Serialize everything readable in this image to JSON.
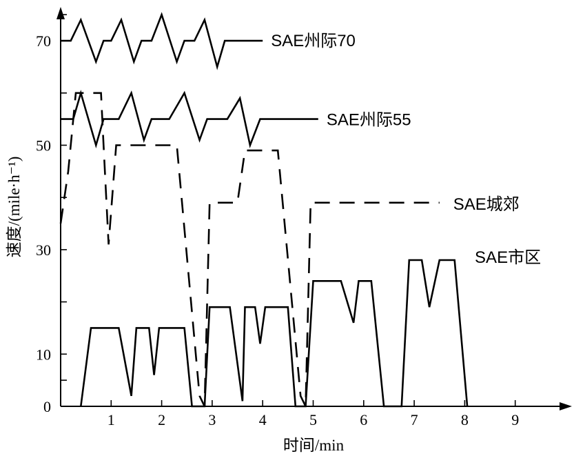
{
  "chart_data": {
    "type": "line",
    "title": "",
    "xlabel": "时间/min",
    "ylabel": "速度/(mile·h⁻¹)",
    "xlim": [
      0,
      10
    ],
    "ylim": [
      0,
      80
    ],
    "x_ticks": [
      1,
      2,
      3,
      4,
      5,
      6,
      7,
      8,
      9
    ],
    "y_tick_labels": [
      0,
      10,
      30,
      50,
      70
    ],
    "y_minor_ticks": [
      5,
      20,
      40,
      60,
      75
    ],
    "grid": false,
    "series": [
      {
        "name": "SAE州际70",
        "dash": "solid",
        "points": [
          [
            0.0,
            70
          ],
          [
            0.2,
            70
          ],
          [
            0.4,
            74
          ],
          [
            0.7,
            66
          ],
          [
            0.85,
            70
          ],
          [
            1.0,
            70
          ],
          [
            1.2,
            74
          ],
          [
            1.45,
            66
          ],
          [
            1.6,
            70
          ],
          [
            1.8,
            70
          ],
          [
            2.0,
            75
          ],
          [
            2.3,
            66
          ],
          [
            2.45,
            70
          ],
          [
            2.65,
            70
          ],
          [
            2.85,
            74
          ],
          [
            3.1,
            65
          ],
          [
            3.25,
            70
          ],
          [
            4.0,
            70
          ]
        ]
      },
      {
        "name": "SAE州际55",
        "dash": "solid",
        "points": [
          [
            0.0,
            55
          ],
          [
            0.25,
            55
          ],
          [
            0.4,
            60
          ],
          [
            0.7,
            50
          ],
          [
            0.85,
            55
          ],
          [
            1.15,
            55
          ],
          [
            1.4,
            60
          ],
          [
            1.65,
            51
          ],
          [
            1.8,
            55
          ],
          [
            2.15,
            55
          ],
          [
            2.45,
            60
          ],
          [
            2.75,
            51
          ],
          [
            2.9,
            55
          ],
          [
            3.3,
            55
          ],
          [
            3.55,
            59
          ],
          [
            3.75,
            50
          ],
          [
            3.95,
            55
          ],
          [
            5.1,
            55
          ]
        ]
      },
      {
        "name": "SAE城郊",
        "dash": "dashed",
        "points": [
          [
            0.0,
            35
          ],
          [
            0.15,
            45
          ],
          [
            0.3,
            60
          ],
          [
            0.8,
            60
          ],
          [
            0.85,
            50
          ],
          [
            0.95,
            31
          ],
          [
            1.1,
            50
          ],
          [
            2.3,
            50
          ],
          [
            2.75,
            2
          ],
          [
            2.85,
            0
          ],
          [
            2.95,
            39
          ],
          [
            3.5,
            39
          ],
          [
            3.65,
            49
          ],
          [
            4.3,
            49
          ],
          [
            4.75,
            2
          ],
          [
            4.85,
            0
          ],
          [
            4.95,
            39
          ],
          [
            7.5,
            39
          ]
        ]
      },
      {
        "name": "SAE市区",
        "dash": "solid",
        "points": [
          [
            0.4,
            0
          ],
          [
            0.6,
            15
          ],
          [
            1.15,
            15
          ],
          [
            1.4,
            2
          ],
          [
            1.5,
            15
          ],
          [
            1.75,
            15
          ],
          [
            1.85,
            6
          ],
          [
            1.95,
            15
          ],
          [
            2.45,
            15
          ],
          [
            2.6,
            0
          ],
          [
            2.85,
            0
          ],
          [
            2.95,
            19
          ],
          [
            3.35,
            19
          ],
          [
            3.6,
            1
          ],
          [
            3.65,
            19
          ],
          [
            3.85,
            19
          ],
          [
            3.95,
            12
          ],
          [
            4.05,
            19
          ],
          [
            4.5,
            19
          ],
          [
            4.65,
            0
          ],
          [
            4.85,
            0
          ],
          [
            5.0,
            24
          ],
          [
            5.55,
            24
          ],
          [
            5.8,
            16
          ],
          [
            5.9,
            24
          ],
          [
            6.15,
            24
          ],
          [
            6.4,
            0
          ],
          [
            6.75,
            0
          ],
          [
            6.9,
            28
          ],
          [
            7.15,
            28
          ],
          [
            7.3,
            19
          ],
          [
            7.5,
            28
          ],
          [
            7.8,
            28
          ],
          [
            8.05,
            0
          ]
        ]
      }
    ],
    "series_labels": [
      "SAE州际70",
      "SAE州际55",
      "SAE城郊",
      "SAE市区"
    ]
  }
}
